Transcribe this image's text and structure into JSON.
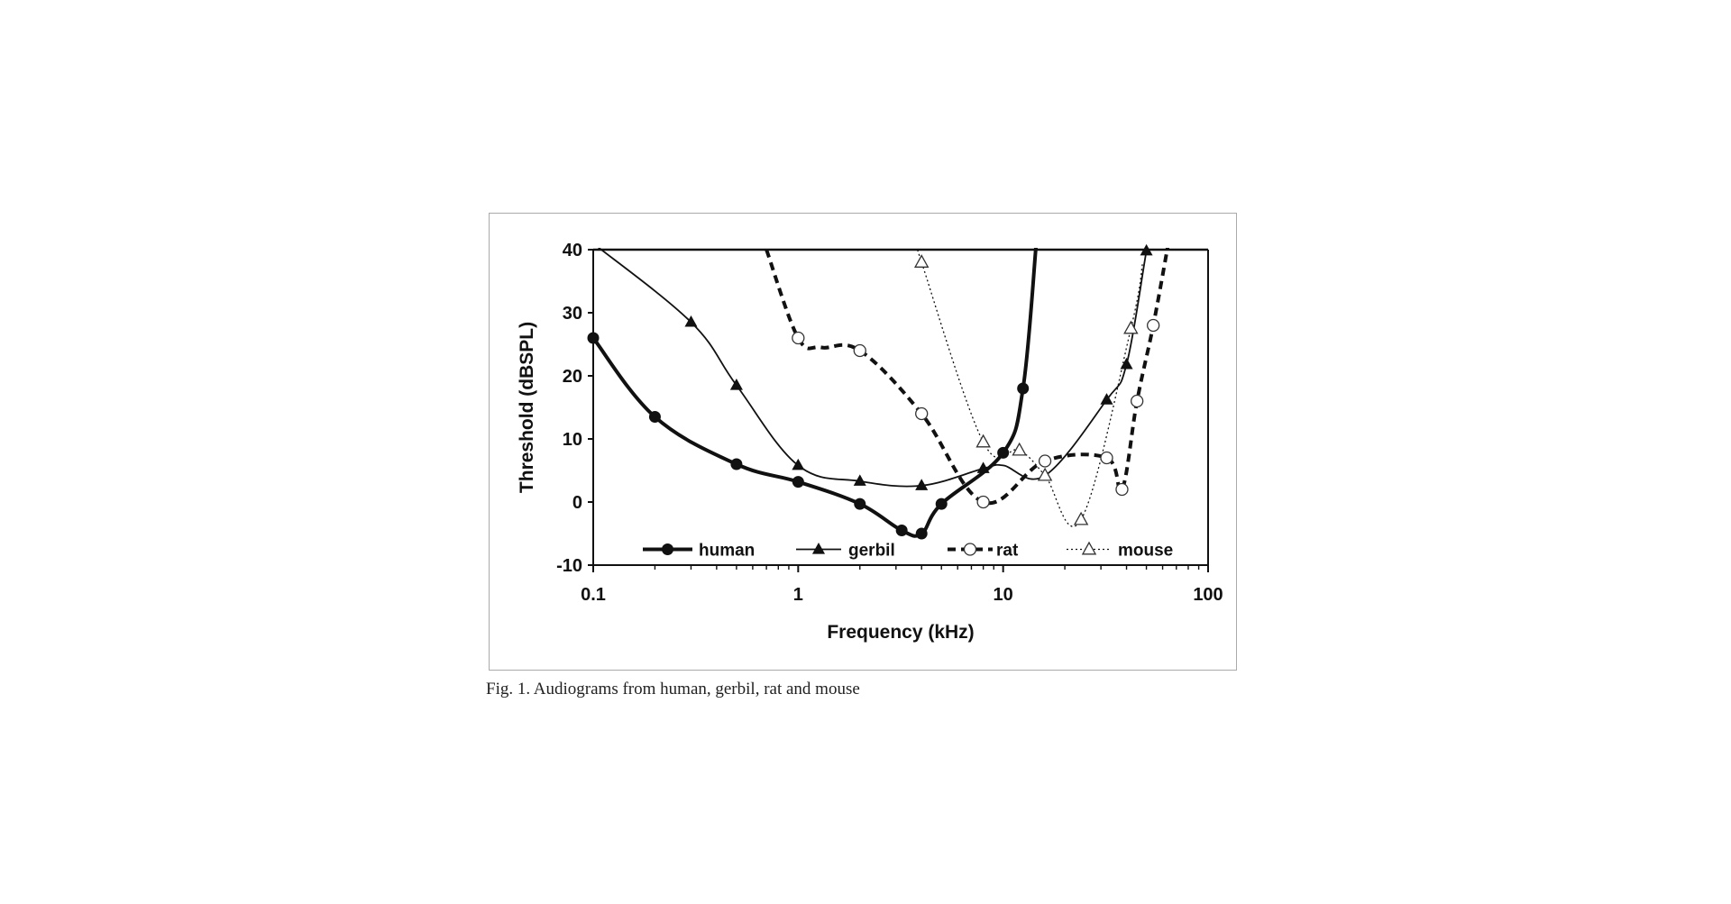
{
  "caption": "Fig. 1. Audiograms from human, gerbil, rat and mouse",
  "chart_data": {
    "type": "line",
    "title": "",
    "xlabel": "Frequency (kHz)",
    "ylabel": "Threshold (dBSPL)",
    "xscale": "log",
    "xlim": [
      0.1,
      100
    ],
    "ylim": [
      -10,
      40
    ],
    "xticks": [
      0.1,
      1,
      10,
      100
    ],
    "xtick_labels": [
      "0.1",
      "1",
      "10",
      "100"
    ],
    "yticks": [
      -10,
      0,
      10,
      20,
      30,
      40
    ],
    "ytick_labels": [
      "-10",
      "0",
      "10",
      "20",
      "30",
      "40"
    ],
    "grid": false,
    "legend_position": "bottom inside",
    "series": [
      {
        "name": "human",
        "marker": "filled-circle",
        "line": "thick-solid",
        "x": [
          0.1,
          0.2,
          0.5,
          1,
          2,
          3.2,
          4,
          5,
          10,
          12.5
        ],
        "y": [
          26,
          13.5,
          6,
          3.2,
          -0.3,
          -4.5,
          -5,
          -0.3,
          7.8,
          18
        ],
        "curve_x": [
          0.1,
          0.2,
          0.5,
          1,
          2,
          3.2,
          4,
          5,
          10,
          12.5,
          14.5
        ],
        "curve_y": [
          26,
          13.5,
          6,
          3.2,
          -0.3,
          -4.5,
          -5,
          -0.3,
          7.8,
          18,
          41
        ]
      },
      {
        "name": "gerbil",
        "marker": "filled-triangle",
        "line": "thin-solid",
        "x": [
          0.3,
          0.5,
          1,
          2,
          4,
          8,
          16,
          32,
          40,
          50
        ],
        "y": [
          28.5,
          18.5,
          5.8,
          3.3,
          2.6,
          5.3,
          4.2,
          16.2,
          21.8,
          39.8
        ],
        "curve_x": [
          0.1,
          0.3,
          0.5,
          1,
          2,
          4,
          8,
          10,
          16,
          32,
          40,
          50,
          52
        ],
        "curve_y": [
          41,
          28.5,
          18.5,
          5.8,
          3.3,
          2.6,
          5.3,
          5.8,
          4.2,
          16.2,
          21.8,
          39.8,
          42
        ]
      },
      {
        "name": "rat",
        "marker": "open-circle",
        "line": "thick-dashed",
        "x": [
          1,
          2,
          4,
          8,
          16,
          32,
          38,
          45,
          54
        ],
        "y": [
          26,
          24,
          14,
          0,
          6.5,
          7,
          2,
          16,
          28
        ],
        "curve_x": [
          0.7,
          1,
          1.3,
          2,
          4,
          8,
          16,
          32,
          38,
          45,
          54,
          64
        ],
        "curve_y": [
          40,
          26,
          24.5,
          24,
          14,
          0,
          6.5,
          7,
          2,
          16,
          28,
          41
        ]
      },
      {
        "name": "mouse",
        "marker": "open-triangle",
        "line": "thin-dotted",
        "x": [
          4,
          8,
          12,
          16,
          24,
          42
        ],
        "y": [
          38,
          9.5,
          8.2,
          4.2,
          -2.8,
          27.5
        ],
        "curve_x": [
          3.8,
          4,
          8,
          12,
          16,
          24,
          42,
          48
        ],
        "curve_y": [
          41,
          38,
          9.5,
          8.2,
          4.2,
          -2.8,
          27.5,
          38
        ]
      }
    ]
  }
}
